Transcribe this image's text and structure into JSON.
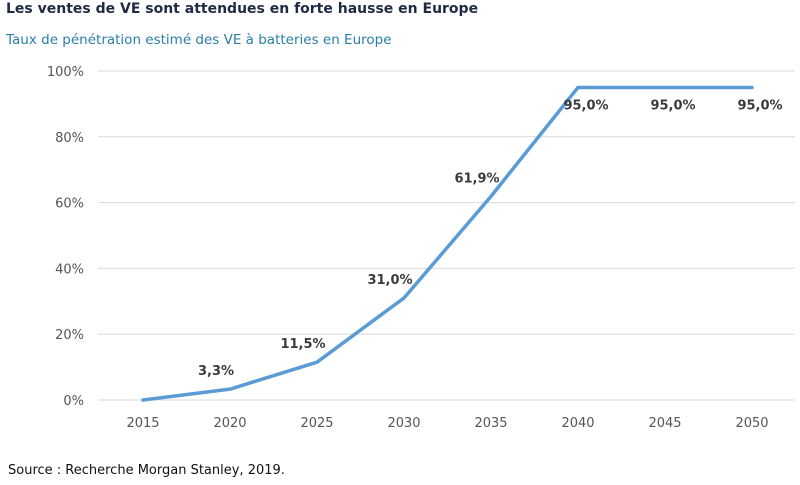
{
  "header": {
    "title": "Les ventes de VE sont attendues en forte hausse en Europe",
    "subtitle": "Taux de pénétration estimé des VE à batteries en Europe"
  },
  "footer": {
    "source": "Source : Recherche Morgan Stanley, 2019."
  },
  "colors": {
    "line": "#5b9bd5",
    "grid": "#d9d9d9",
    "title": "#1f2a44",
    "subtitle": "#2a7fa8"
  },
  "chart_data": {
    "type": "line",
    "title": "Les ventes de VE sont attendues en forte hausse en Europe",
    "subtitle": "Taux de pénétration estimé des VE à batteries en Europe",
    "xlabel": "",
    "ylabel": "",
    "categories": [
      "2015",
      "2020",
      "2025",
      "2030",
      "2035",
      "2040",
      "2045",
      "2050"
    ],
    "series": [
      {
        "name": "Taux de pénétration",
        "values": [
          0,
          3.3,
          11.5,
          31.0,
          61.9,
          95.0,
          95.0,
          95.0
        ],
        "labels": [
          "",
          "3,3%",
          "11,5%",
          "31,0%",
          "61,9%",
          "95,0%",
          "95,0%",
          "95,0%"
        ]
      }
    ],
    "ylim": [
      0,
      100
    ],
    "yticks": [
      0,
      20,
      40,
      60,
      80,
      100
    ],
    "ytick_labels": [
      "0%",
      "20%",
      "40%",
      "60%",
      "80%",
      "100%"
    ],
    "grid": true,
    "legend": "none"
  }
}
